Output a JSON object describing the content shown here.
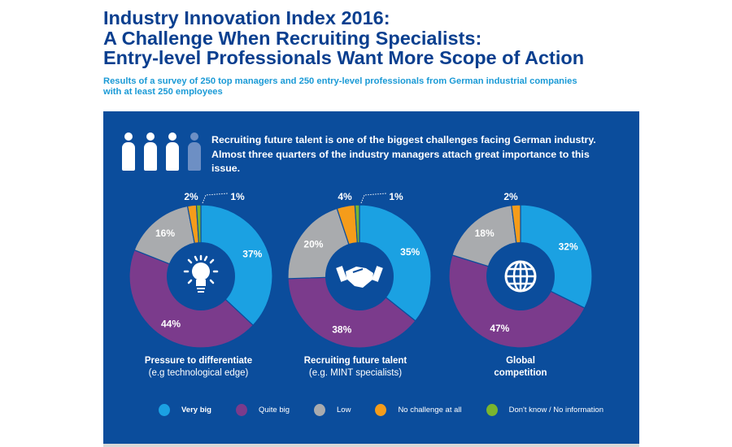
{
  "header": {
    "title_lines": [
      "Industry Innovation Index 2016:",
      "A Challenge When Recruiting Specialists:",
      "Entry-level Professionals Want More Scope of Action"
    ],
    "subtitle": "Results of a survey of 250 top managers and 250 entry-level professionals from German industrial companies with at least 250 employees"
  },
  "intro": "Recruiting future talent is one of the biggest challenges facing German industry. Almost three quarters of the industry managers attach great importance to this issue.",
  "colors": {
    "panel": "#0b4d9c",
    "Very big": "#1ba1e2",
    "Quite big": "#7b3b8c",
    "Low": "#a9abae",
    "No challenge at all": "#f59c1a",
    "Don't know / No information": "#7ab52e",
    "title": "#0a3f8f",
    "subtitle": "#1a9ad6"
  },
  "chart_data": [
    {
      "type": "pie",
      "title": "Pressure to differentiate",
      "subtitle": "(e.g technological edge)",
      "icon": "lightbulb-icon",
      "categories": [
        "Very big",
        "Quite big",
        "Low",
        "No challenge at all",
        "Don't know / No information"
      ],
      "values": [
        37,
        44,
        16,
        2,
        1
      ],
      "labels": [
        "37%",
        "44%",
        "16%",
        "2%",
        "1%"
      ]
    },
    {
      "type": "pie",
      "title": "Recruiting future talent",
      "subtitle": "(e.g. MINT specialists)",
      "icon": "handshake-icon",
      "categories": [
        "Very big",
        "Quite big",
        "Low",
        "No challenge at all",
        "Don't know / No information"
      ],
      "values": [
        35,
        38,
        20,
        4,
        1
      ],
      "labels": [
        "35%",
        "38%",
        "20%",
        "4%",
        "1%"
      ]
    },
    {
      "type": "pie",
      "title": "Global",
      "subtitle": "competition",
      "icon": "globe-icon",
      "categories": [
        "Very big",
        "Quite big",
        "Low",
        "No challenge at all"
      ],
      "values": [
        32,
        47,
        18,
        2
      ],
      "labels": [
        "32%",
        "47%",
        "18%",
        "2%"
      ]
    }
  ],
  "legend": [
    "Very big",
    "Quite big",
    "Low",
    "No challenge at all",
    "Don't know / No information"
  ]
}
